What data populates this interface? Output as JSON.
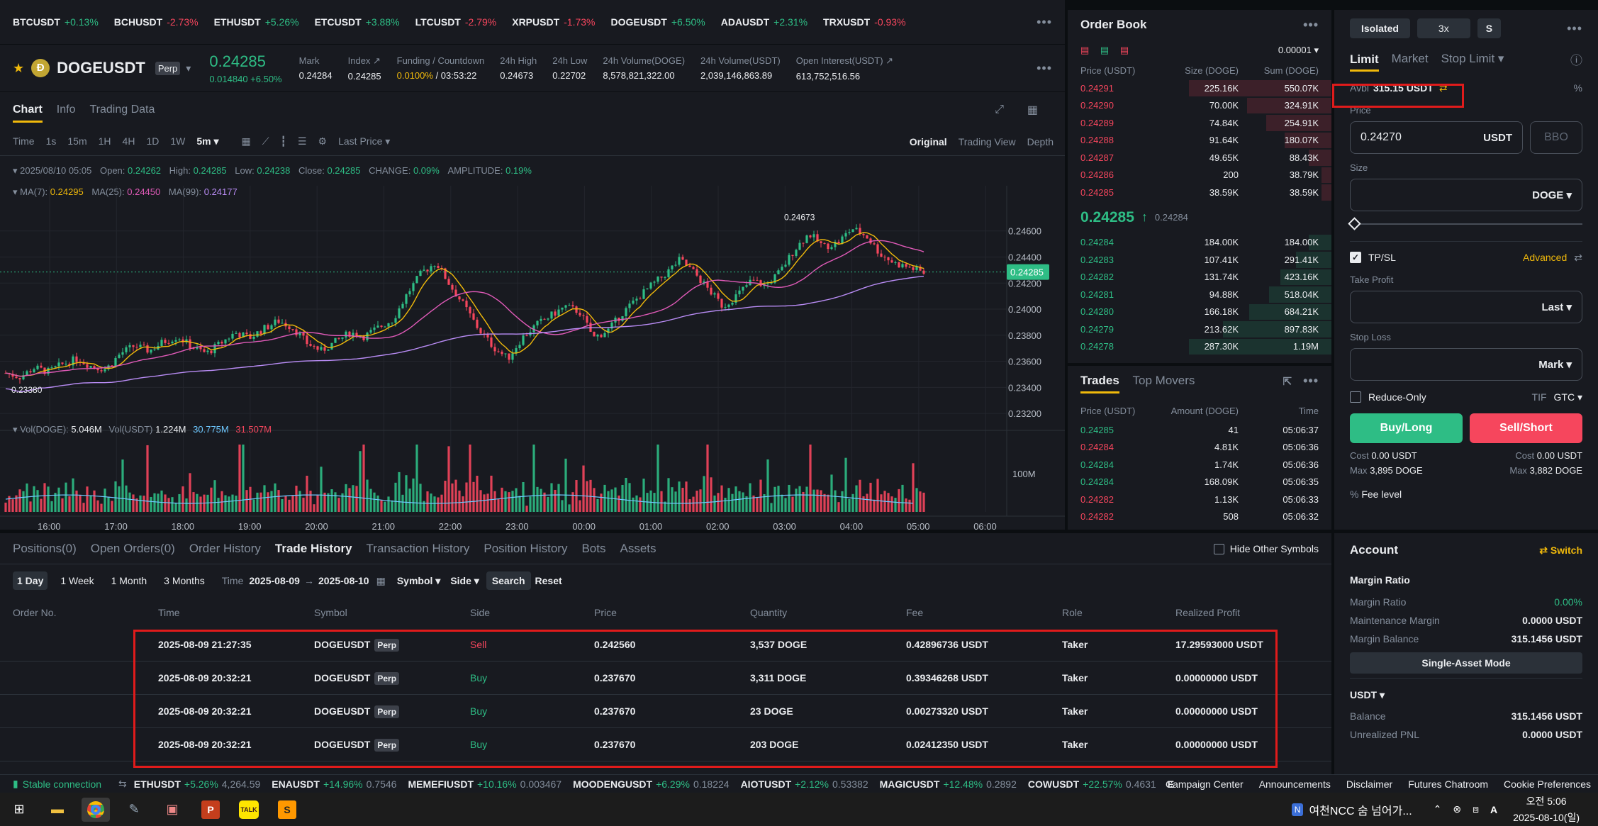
{
  "ticker": [
    {
      "sym": "BTCUSDT",
      "chg": "+0.13%",
      "up": true
    },
    {
      "sym": "BCHUSDT",
      "chg": "-2.73%",
      "up": false
    },
    {
      "sym": "ETHUSDT",
      "chg": "+5.26%",
      "up": true
    },
    {
      "sym": "ETCUSDT",
      "chg": "+3.88%",
      "up": true
    },
    {
      "sym": "LTCUSDT",
      "chg": "-2.79%",
      "up": false
    },
    {
      "sym": "XRPUSDT",
      "chg": "-1.73%",
      "up": false
    },
    {
      "sym": "DOGEUSDT",
      "chg": "+6.50%",
      "up": true
    },
    {
      "sym": "ADAUSDT",
      "chg": "+2.31%",
      "up": true
    },
    {
      "sym": "TRXUSDT",
      "chg": "-0.93%",
      "up": false
    }
  ],
  "header": {
    "symbol": "DOGEUSDT",
    "perp": "Perp",
    "price": "0.24285",
    "change": "0.014840 +6.50%",
    "stats": [
      {
        "label": "Mark",
        "value": "0.24284"
      },
      {
        "label": "Index ↗",
        "value": "0.24285"
      },
      {
        "label": "Funding / Countdown",
        "value": "0.0100% / 03:53:22"
      },
      {
        "label": "24h High",
        "value": "0.24673"
      },
      {
        "label": "24h Low",
        "value": "0.22702"
      },
      {
        "label": "24h Volume(DOGE)",
        "value": "8,578,821,322.00"
      },
      {
        "label": "24h Volume(USDT)",
        "value": "2,039,146,863.89"
      },
      {
        "label": "Open Interest(USDT) ↗",
        "value": "613,752,516.56"
      }
    ]
  },
  "chart_tabs": [
    "Chart",
    "Info",
    "Trading Data"
  ],
  "toolbar": {
    "intervals": [
      "Time",
      "1s",
      "15m",
      "1H",
      "4H",
      "1D",
      "1W",
      "5m ▾"
    ],
    "price_type": "Last Price ▾",
    "views": [
      "Original",
      "Trading View",
      "Depth"
    ]
  },
  "ohlc": {
    "date": "2025/08/10 05:05",
    "open_l": "Open:",
    "open": "0.24262",
    "high_l": "High:",
    "high": "0.24285",
    "low_l": "Low:",
    "low": "0.24238",
    "close_l": "Close:",
    "close": "0.24285",
    "change_l": "CHANGE:",
    "change": "0.09%",
    "amp_l": "AMPLITUDE:",
    "amp": "0.19%"
  },
  "ma": {
    "ma7_l": "MA(7):",
    "ma7": "0.24295",
    "ma25_l": "MA(25):",
    "ma25": "0.24450",
    "ma99_l": "MA(99):",
    "ma99": "0.24177"
  },
  "vol": {
    "doge_l": "Vol(DOGE):",
    "doge": "5.046M",
    "usdt_l": "Vol(USDT)",
    "usdt": "1.224M",
    "v1": "30.775M",
    "v2": "31.507M",
    "axis": "100M"
  },
  "chart_data": {
    "type": "candlestick",
    "price_ticks": [
      0.246,
      0.244,
      0.242,
      0.24,
      0.238,
      0.236,
      0.234,
      0.232
    ],
    "price_tick_labels": [
      "0.24600",
      "0.24400",
      "0.24200",
      "0.24000",
      "0.23800",
      "0.23600",
      "0.23400",
      "0.23200"
    ],
    "ylim": [
      0.2307,
      0.2474
    ],
    "time_ticks": [
      "16:00",
      "17:00",
      "18:00",
      "19:00",
      "20:00",
      "21:00",
      "22:00",
      "23:00",
      "00:00",
      "01:00",
      "02:00",
      "03:00",
      "04:00",
      "05:00",
      "06:00"
    ],
    "last_price_label": "0.24285",
    "high_marker": "0.24673",
    "low_marker": "0.23380",
    "close_path": [
      0.2351,
      0.2348,
      0.2355,
      0.2352,
      0.2358,
      0.2362,
      0.2356,
      0.2354,
      0.2366,
      0.2372,
      0.2368,
      0.2375,
      0.2379,
      0.2371,
      0.2366,
      0.2374,
      0.2382,
      0.2378,
      0.2385,
      0.2391,
      0.2386,
      0.2374,
      0.2368,
      0.2375,
      0.2382,
      0.2379,
      0.2386,
      0.2392,
      0.2412,
      0.2428,
      0.2436,
      0.2418,
      0.2402,
      0.2384,
      0.2371,
      0.2362,
      0.2378,
      0.2388,
      0.2395,
      0.2402,
      0.2398,
      0.2378,
      0.2384,
      0.2397,
      0.2408,
      0.2418,
      0.2427,
      0.2438,
      0.2428,
      0.2415,
      0.2402,
      0.2411,
      0.2422,
      0.2418,
      0.2429,
      0.2446,
      0.2458,
      0.2448,
      0.2451,
      0.2462,
      0.2456,
      0.2442,
      0.2435,
      0.2432,
      0.2428
    ]
  },
  "orderbook": {
    "title": "Order Book",
    "step": "0.00001 ▾",
    "cols": [
      "Price (USDT)",
      "Size (DOGE)",
      "Sum (DOGE)"
    ],
    "asks": [
      [
        "0.24291",
        "225.16K",
        "550.07K",
        1.0
      ],
      [
        "0.24290",
        "70.00K",
        "324.91K",
        0.59
      ],
      [
        "0.24289",
        "74.84K",
        "254.91K",
        0.46
      ],
      [
        "0.24288",
        "91.64K",
        "180.07K",
        0.33
      ],
      [
        "0.24287",
        "49.65K",
        "88.43K",
        0.16
      ],
      [
        "0.24286",
        "200",
        "38.79K",
        0.07
      ],
      [
        "0.24285",
        "38.59K",
        "38.59K",
        0.07
      ]
    ],
    "mid": "0.24285",
    "mid_arrow": "↑",
    "mark": "0.24284",
    "bids": [
      [
        "0.24284",
        "184.00K",
        "184.00K",
        0.16
      ],
      [
        "0.24283",
        "107.41K",
        "291.41K",
        0.25
      ],
      [
        "0.24282",
        "131.74K",
        "423.16K",
        0.36
      ],
      [
        "0.24281",
        "94.88K",
        "518.04K",
        0.44
      ],
      [
        "0.24280",
        "166.18K",
        "684.21K",
        0.58
      ],
      [
        "0.24279",
        "213.62K",
        "897.83K",
        0.76
      ],
      [
        "0.24278",
        "287.30K",
        "1.19M",
        1.0
      ]
    ]
  },
  "trades": {
    "tabs": [
      "Trades",
      "Top Movers"
    ],
    "cols": [
      "Price (USDT)",
      "Amount (DOGE)",
      "Time"
    ],
    "rows": [
      [
        "0.24285",
        "41",
        "05:06:37",
        true
      ],
      [
        "0.24284",
        "4.81K",
        "05:06:36",
        false
      ],
      [
        "0.24284",
        "1.74K",
        "05:06:36",
        true
      ],
      [
        "0.24284",
        "168.09K",
        "05:06:35",
        true
      ],
      [
        "0.24282",
        "1.13K",
        "05:06:33",
        false
      ],
      [
        "0.24282",
        "508",
        "05:06:32",
        false
      ]
    ]
  },
  "orderform": {
    "margin": "Isolated",
    "leverage": "3x",
    "mode": "S",
    "types": [
      "Limit",
      "Market",
      "Stop Limit ▾"
    ],
    "avbl_label": "Avbl",
    "avbl": "315.15 USDT",
    "price_label": "Price",
    "price": "0.24270",
    "price_unit": "USDT",
    "bbo": "BBO",
    "size_label": "Size",
    "size_unit": "DOGE ▾",
    "tpsl": "TP/SL",
    "advanced": "Advanced",
    "tp_label": "Take Profit",
    "tp_sel": "Last ▾",
    "sl_label": "Stop Loss",
    "sl_sel": "Mark ▾",
    "reduce": "Reduce-Only",
    "tif": "TIF",
    "gtc": "GTC ▾",
    "buy": "Buy/Long",
    "sell": "Sell/Short",
    "cost_l": "Cost",
    "cost_buy": "0.00 USDT",
    "cost_sell": "0.00 USDT",
    "max_l": "Max",
    "max_buy": "3,895 DOGE",
    "max_sell": "3,882 DOGE",
    "fee": "Fee level"
  },
  "bottom": {
    "tabs": [
      "Positions(0)",
      "Open Orders(0)",
      "Order History",
      "Trade History",
      "Transaction History",
      "Position History",
      "Bots",
      "Assets"
    ],
    "hide": "Hide Other Symbols",
    "ranges": [
      "1 Day",
      "1 Week",
      "1 Month",
      "3 Months"
    ],
    "time_l": "Time",
    "from": "2025-08-09",
    "to": "2025-08-10",
    "symbol": "Symbol ▾",
    "side": "Side ▾",
    "search": "Search",
    "reset": "Reset",
    "cols": [
      "Order No.",
      "Time",
      "Symbol",
      "Side",
      "Price",
      "Quantity",
      "Fee",
      "Role",
      "Realized Profit"
    ],
    "rows": [
      [
        "",
        "2025-08-09 21:27:35",
        "DOGEUSDT",
        "Sell",
        "0.242560",
        "3,537 DOGE",
        "0.42896736 USDT",
        "Taker",
        "17.29593000 USDT"
      ],
      [
        "",
        "2025-08-09 20:32:21",
        "DOGEUSDT",
        "Buy",
        "0.237670",
        "3,311 DOGE",
        "0.39346268 USDT",
        "Taker",
        "0.00000000 USDT"
      ],
      [
        "",
        "2025-08-09 20:32:21",
        "DOGEUSDT",
        "Buy",
        "0.237670",
        "23 DOGE",
        "0.00273320 USDT",
        "Taker",
        "0.00000000 USDT"
      ],
      [
        "",
        "2025-08-09 20:32:21",
        "DOGEUSDT",
        "Buy",
        "0.237670",
        "203 DOGE",
        "0.02412350 USDT",
        "Taker",
        "0.00000000 USDT"
      ]
    ]
  },
  "account": {
    "title": "Account",
    "switch": "Switch",
    "margin_ratio_t": "Margin Ratio",
    "rows": [
      [
        "Margin Ratio",
        "0.00%"
      ],
      [
        "Maintenance Margin",
        "0.0000 USDT"
      ],
      [
        "Margin Balance",
        "315.1456 USDT"
      ]
    ],
    "mode": "Single-Asset Mode",
    "asset": "USDT ▾",
    "rows2": [
      [
        "Balance",
        "315.1456 USDT"
      ],
      [
        "Unrealized PNL",
        "0.0000 USDT"
      ]
    ]
  },
  "status": {
    "conn": "Stable connection",
    "items": [
      [
        "ETHUSDT",
        "+5.26%",
        "4,264.59"
      ],
      [
        "ENAUSDT",
        "+14.96%",
        "0.7546"
      ],
      [
        "MEMEFIUSDT",
        "+10.16%",
        "0.003467"
      ],
      [
        "MOODENGUSDT",
        "+6.29%",
        "0.18224"
      ],
      [
        "AIOTUSDT",
        "+2.12%",
        "0.53382"
      ],
      [
        "MAGICUSDT",
        "+12.48%",
        "0.2892"
      ],
      [
        "COWUSDT",
        "+22.57%",
        "0.4631"
      ]
    ],
    "trunc": "E",
    "links": [
      "Campaign Center",
      "Announcements",
      "Disclaimer",
      "Futures Chatroom",
      "Cookie Preferences"
    ]
  },
  "taskbar": {
    "notif": "여천NCC 숨 넘어가...",
    "time": "오전 5:06",
    "date": "2025-08-10(일)"
  }
}
